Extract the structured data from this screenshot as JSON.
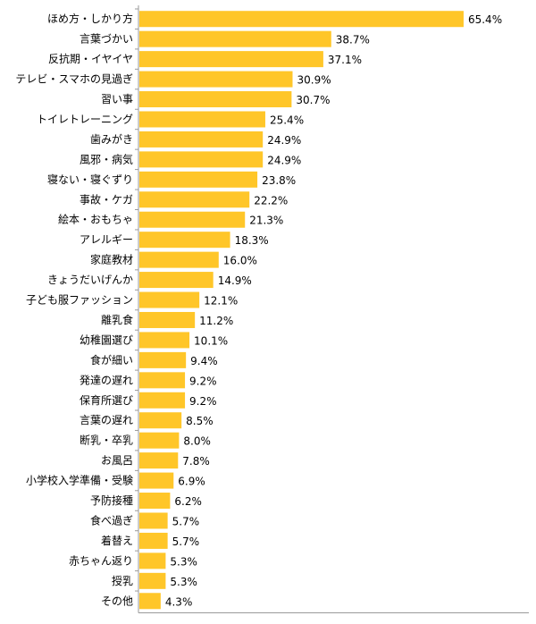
{
  "chart_data": {
    "type": "bar",
    "orientation": "horizontal",
    "bar_color": "#FFC629",
    "axis_color": "#9a9a9a",
    "value_suffix": "%",
    "xlim": [
      0,
      100
    ],
    "grid": false,
    "categories": [
      "ほめ方・しかり方",
      "言葉づかい",
      "反抗期・イヤイヤ",
      "テレビ・スマホの見過ぎ",
      "習い事",
      "トイレトレーニング",
      "歯みがき",
      "風邪・病気",
      "寝ない・寝ぐずり",
      "事故・ケガ",
      "絵本・おもちゃ",
      "アレルギー",
      "家庭教材",
      "きょうだいげんか",
      "子ども服ファッション",
      "離乳食",
      "幼稚園選び",
      "食が細い",
      "発達の遅れ",
      "保育所選び",
      "言葉の遅れ",
      "断乳・卒乳",
      "お風呂",
      "小学校入学準備・受験",
      "予防接種",
      "食べ過ぎ",
      "着替え",
      "赤ちゃん返り",
      "授乳",
      "その他"
    ],
    "values": [
      65.4,
      38.7,
      37.1,
      30.9,
      30.7,
      25.4,
      24.9,
      24.9,
      23.8,
      22.2,
      21.3,
      18.3,
      16.0,
      14.9,
      12.1,
      11.2,
      10.1,
      9.4,
      9.2,
      9.2,
      8.5,
      8.0,
      7.8,
      6.9,
      6.2,
      5.7,
      5.7,
      5.3,
      5.3,
      4.3
    ],
    "value_labels": [
      "65.4%",
      "38.7%",
      "37.1%",
      "30.9%",
      "30.7%",
      "25.4%",
      "24.9%",
      "24.9%",
      "23.8%",
      "22.2%",
      "21.3%",
      "18.3%",
      "16.0%",
      "14.9%",
      "12.1%",
      "11.2%",
      "10.1%",
      "9.4%",
      "9.2%",
      "9.2%",
      "8.5%",
      "8.0%",
      "7.8%",
      "6.9%",
      "6.2%",
      "5.7%",
      "5.7%",
      "5.3%",
      "5.3%",
      "4.3%"
    ]
  }
}
